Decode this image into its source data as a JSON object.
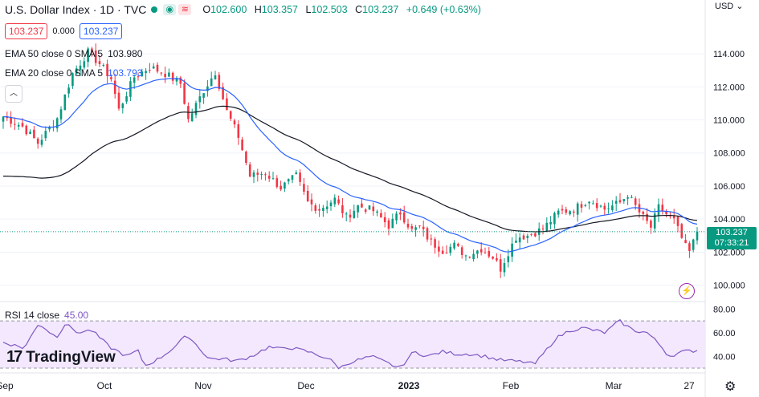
{
  "header": {
    "title": "U.S. Dollar Index · 1D · TVC",
    "status_color": "#089981",
    "ohlc": [
      {
        "label": "O",
        "value": "102.600"
      },
      {
        "label": "H",
        "value": "103.357"
      },
      {
        "label": "L",
        "value": "102.503"
      },
      {
        "label": "C",
        "value": "103.237"
      }
    ],
    "change": "+0.649 (+0.63%)",
    "currency": "USD"
  },
  "trade": {
    "sell": "103.237",
    "spread": "0.000",
    "buy": "103.237"
  },
  "indicators": {
    "ema50": {
      "label": "EMA 50 close 0 SMA 5",
      "value": "103.980",
      "color": "#131722"
    },
    "ema20": {
      "label": "EMA 20 close 0 SMA 5",
      "value": "103.793",
      "color": "#2962ff"
    },
    "rsi": {
      "label": "RSI 14 close",
      "value": "45.00",
      "color": "#7e57c2"
    }
  },
  "last_price": {
    "value": "103.237",
    "countdown": "07:33:21"
  },
  "brand": "TradingView",
  "chart_data": {
    "type": "candlestick",
    "title": "U.S. Dollar Index · 1D · TVC",
    "y_ticks": [
      "114.000",
      "112.000",
      "110.000",
      "108.000",
      "106.000",
      "104.000",
      "102.000",
      "100.000"
    ],
    "ylim": [
      99.2,
      115.8
    ],
    "x_ticks": [
      "Sep",
      "Oct",
      "Nov",
      "Dec",
      "2023",
      "Feb",
      "Mar",
      "27"
    ],
    "rsi_ticks": [
      "80.00",
      "60.00",
      "40.00"
    ],
    "rsi_ylim": [
      28,
      85
    ],
    "rsi_band": [
      30,
      70
    ],
    "up_color": "#089981",
    "down_color": "#f23645",
    "rsi_close_anchors": [
      [
        0,
        52
      ],
      [
        6,
        47
      ],
      [
        10,
        68
      ],
      [
        15,
        56
      ],
      [
        18,
        70
      ],
      [
        20,
        60
      ],
      [
        25,
        62
      ],
      [
        30,
        48
      ],
      [
        35,
        40
      ],
      [
        38,
        45
      ],
      [
        40,
        32
      ],
      [
        44,
        38
      ],
      [
        48,
        47
      ],
      [
        52,
        58
      ],
      [
        56,
        45
      ],
      [
        58,
        38
      ],
      [
        62,
        38
      ],
      [
        66,
        36
      ],
      [
        70,
        40
      ],
      [
        75,
        48
      ],
      [
        78,
        46
      ],
      [
        80,
        48
      ],
      [
        86,
        44
      ],
      [
        92,
        38
      ],
      [
        95,
        30
      ],
      [
        98,
        35
      ],
      [
        104,
        40
      ],
      [
        108,
        35
      ],
      [
        112,
        30
      ],
      [
        116,
        44
      ],
      [
        120,
        40
      ],
      [
        124,
        44
      ],
      [
        128,
        42
      ],
      [
        132,
        42
      ],
      [
        136,
        40
      ],
      [
        140,
        37
      ],
      [
        144,
        36
      ],
      [
        148,
        35
      ],
      [
        150,
        33
      ],
      [
        152,
        40
      ],
      [
        156,
        55
      ],
      [
        160,
        62
      ],
      [
        164,
        64
      ],
      [
        170,
        60
      ],
      [
        174,
        70
      ],
      [
        178,
        62
      ],
      [
        182,
        60
      ],
      [
        186,
        48
      ],
      [
        188,
        40
      ],
      [
        190,
        42
      ],
      [
        192,
        44
      ],
      [
        196,
        45
      ]
    ],
    "close_anchors": [
      [
        0,
        110.2
      ],
      [
        5,
        109.6
      ],
      [
        9,
        108.6
      ],
      [
        14,
        110.1
      ],
      [
        18,
        112.8
      ],
      [
        22,
        114.1
      ],
      [
        25,
        113.4
      ],
      [
        28,
        112.5
      ],
      [
        30,
        110.6
      ],
      [
        34,
        112.6
      ],
      [
        38,
        113.2
      ],
      [
        42,
        112.8
      ],
      [
        46,
        112.2
      ],
      [
        48,
        110.0
      ],
      [
        52,
        111.8
      ],
      [
        55,
        112.9
      ],
      [
        58,
        110.5
      ],
      [
        61,
        109.0
      ],
      [
        64,
        106.6
      ],
      [
        68,
        106.8
      ],
      [
        72,
        105.9
      ],
      [
        76,
        106.6
      ],
      [
        79,
        105.0
      ],
      [
        82,
        104.6
      ],
      [
        86,
        105.2
      ],
      [
        89,
        104.1
      ],
      [
        92,
        104.8
      ],
      [
        96,
        104.5
      ],
      [
        100,
        103.6
      ],
      [
        103,
        104.4
      ],
      [
        106,
        103.3
      ],
      [
        108,
        103.5
      ],
      [
        111,
        102.6
      ],
      [
        114,
        102.1
      ],
      [
        117,
        102.4
      ],
      [
        120,
        101.8
      ],
      [
        124,
        102.2
      ],
      [
        127,
        101.7
      ],
      [
        129,
        101.0
      ],
      [
        131,
        102.0
      ],
      [
        133,
        102.9
      ],
      [
        136,
        103.0
      ],
      [
        140,
        103.4
      ],
      [
        144,
        104.4
      ],
      [
        148,
        104.6
      ],
      [
        152,
        105.2
      ],
      [
        156,
        104.6
      ],
      [
        160,
        105.0
      ],
      [
        162,
        105.5
      ],
      [
        165,
        104.4
      ],
      [
        168,
        103.5
      ],
      [
        170,
        104.7
      ],
      [
        174,
        103.9
      ],
      [
        177,
        102.3
      ],
      [
        178,
        102.0
      ],
      [
        180,
        103.2
      ]
    ]
  }
}
